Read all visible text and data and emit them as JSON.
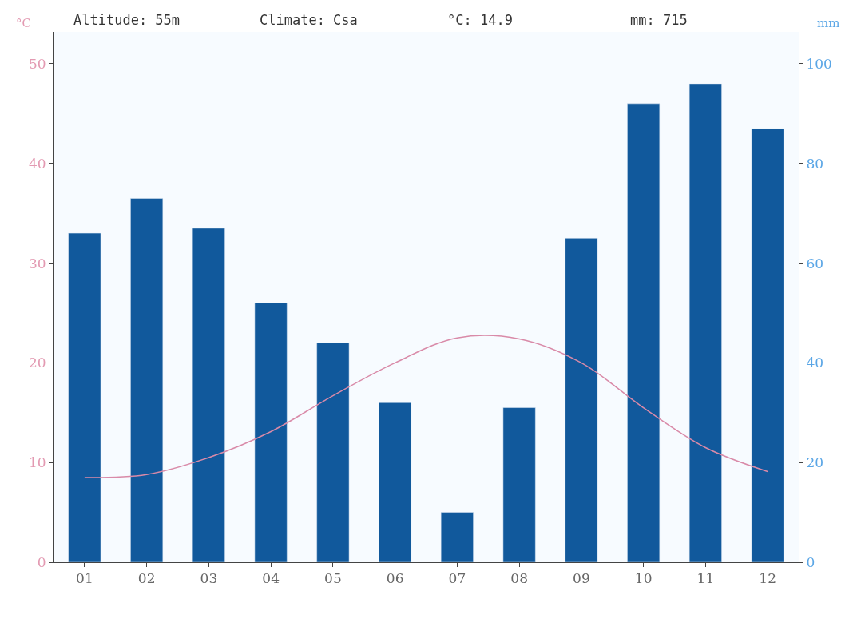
{
  "chart_data": {
    "type": "bar",
    "categories": [
      "01",
      "02",
      "03",
      "04",
      "05",
      "06",
      "07",
      "08",
      "09",
      "10",
      "11",
      "12"
    ],
    "series": [
      {
        "axis": "y2",
        "color": "#11599c",
        "values": [
          66,
          73,
          67,
          52,
          44,
          32,
          10,
          31,
          65,
          92,
          96,
          87
        ]
      },
      {
        "type": "line",
        "axis": "y",
        "color": "#d98aa8",
        "values": [
          8.5,
          8.8,
          10.5,
          13.1,
          16.7,
          20,
          22.5,
          22.4,
          20,
          15.5,
          11.5,
          9.1
        ]
      }
    ],
    "ylabel": "°C",
    "y2label": "mm",
    "ylim": [
      0,
      53.2
    ],
    "yticks": [
      0,
      10,
      20,
      30,
      40,
      50
    ],
    "y2lim": [
      0,
      106.4
    ],
    "y2ticks": [
      0,
      20,
      40,
      60,
      80,
      100
    ],
    "annotations": [
      "Altitude: 55m",
      "Climate: Csa",
      "°C: 14.9",
      "mm: 715"
    ],
    "grid": false,
    "legend": false
  }
}
